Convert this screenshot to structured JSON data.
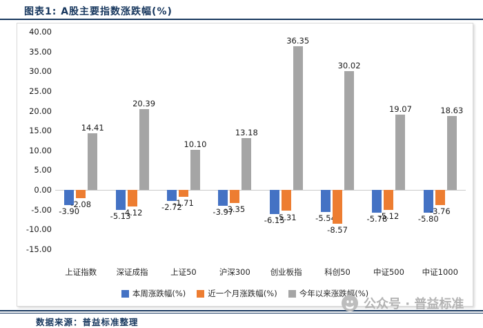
{
  "page": {
    "title": "图表1: A股主要指数涨跌幅(%)",
    "source_note": "数据来源：普益标准整理",
    "watermark": "公众号 · 普益标准"
  },
  "chart_data": {
    "type": "bar",
    "title": "A股主要指数涨跌幅(%)",
    "categories": [
      "上证指数",
      "深证成指",
      "上证50",
      "沪深300",
      "创业板指",
      "科创50",
      "中证500",
      "中证1000"
    ],
    "series": [
      {
        "name": "本周涨跌幅(%)",
        "color": "#4472C4",
        "values": [
          -3.9,
          -5.13,
          -2.72,
          -3.97,
          -6.15,
          -5.54,
          -5.78,
          -5.8
        ]
      },
      {
        "name": "近一个月涨跌幅(%)",
        "color": "#ED7D31",
        "values": [
          -2.08,
          -4.12,
          -1.71,
          -3.35,
          -5.31,
          -8.57,
          -5.12,
          -3.76
        ]
      },
      {
        "name": "今年以来涨跌幅(%)",
        "color": "#A5A5A5",
        "values": [
          14.41,
          20.39,
          10.1,
          13.18,
          36.35,
          30.02,
          19.07,
          18.63
        ]
      }
    ],
    "ylim": [
      -15,
      40
    ],
    "yticks": [
      40,
      35,
      30,
      25,
      20,
      15,
      10,
      5,
      0,
      -5,
      -10,
      -15
    ],
    "label_decimals": 2,
    "legend_position": "bottom",
    "grid": false
  }
}
